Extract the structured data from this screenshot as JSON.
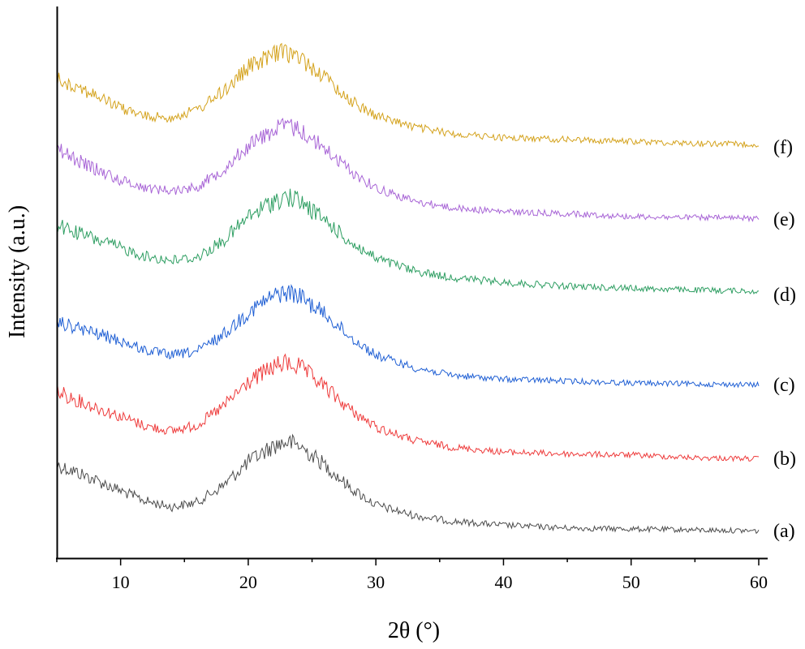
{
  "chart_data": {
    "type": "line",
    "title": "",
    "xlabel": "2θ (°)",
    "ylabel": "Intensity (a.u.)",
    "xlim": [
      5,
      60
    ],
    "xticks": [
      10,
      20,
      30,
      40,
      50,
      60
    ],
    "x_tick_labels": [
      "10",
      "20",
      "30",
      "40",
      "50",
      "60"
    ],
    "y_ticks_visible": false,
    "grid": false,
    "legend": "none",
    "x": [
      5,
      7,
      10,
      12,
      14,
      16,
      18,
      20,
      22,
      23,
      24,
      26,
      28,
      30,
      33,
      36,
      40,
      45,
      50,
      55,
      60
    ],
    "series": [
      {
        "name": "(a)",
        "color": "#4d4d4d",
        "values": [
          0.72,
          0.62,
          0.45,
          0.34,
          0.28,
          0.33,
          0.5,
          0.75,
          0.92,
          0.96,
          0.92,
          0.72,
          0.48,
          0.3,
          0.19,
          0.13,
          0.09,
          0.06,
          0.05,
          0.04,
          0.03
        ]
      },
      {
        "name": "(b)",
        "color": "#ee3b3b",
        "values": [
          0.73,
          0.62,
          0.47,
          0.37,
          0.32,
          0.38,
          0.57,
          0.83,
          0.99,
          1.03,
          0.99,
          0.78,
          0.54,
          0.36,
          0.22,
          0.15,
          0.1,
          0.08,
          0.07,
          0.04,
          0.03
        ]
      },
      {
        "name": "(c)",
        "color": "#1f5fd4",
        "values": [
          0.68,
          0.61,
          0.49,
          0.39,
          0.34,
          0.38,
          0.55,
          0.79,
          0.96,
          1.0,
          0.96,
          0.77,
          0.53,
          0.34,
          0.21,
          0.13,
          0.09,
          0.07,
          0.05,
          0.04,
          0.03
        ]
      },
      {
        "name": "(d)",
        "color": "#2e9e62",
        "values": [
          0.76,
          0.66,
          0.52,
          0.43,
          0.39,
          0.42,
          0.59,
          0.84,
          1.01,
          1.05,
          1.01,
          0.81,
          0.58,
          0.41,
          0.28,
          0.21,
          0.16,
          0.12,
          0.1,
          0.08,
          0.07
        ]
      },
      {
        "name": "(e)",
        "color": "#a865d6",
        "values": [
          0.77,
          0.62,
          0.44,
          0.36,
          0.33,
          0.37,
          0.55,
          0.8,
          0.97,
          1.01,
          0.97,
          0.77,
          0.54,
          0.36,
          0.22,
          0.15,
          0.11,
          0.09,
          0.06,
          0.05,
          0.04
        ]
      },
      {
        "name": "(f)",
        "color": "#d4a21c",
        "values": [
          0.75,
          0.64,
          0.44,
          0.35,
          0.34,
          0.42,
          0.61,
          0.86,
          1.0,
          1.02,
          0.97,
          0.76,
          0.52,
          0.36,
          0.24,
          0.17,
          0.13,
          0.11,
          0.09,
          0.07,
          0.06
        ]
      }
    ]
  }
}
